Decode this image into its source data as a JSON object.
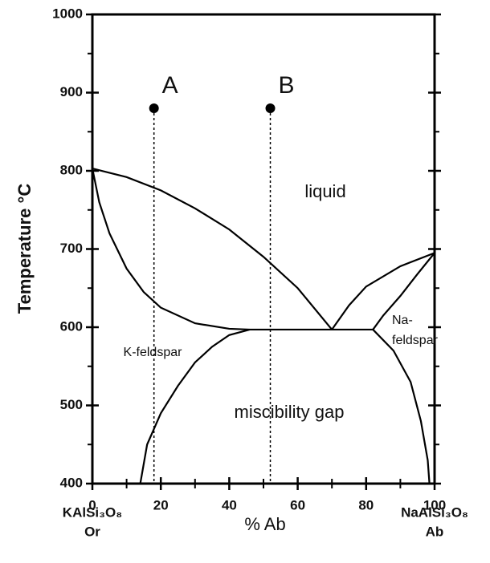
{
  "chart_data": {
    "type": "phase-diagram",
    "xlabel": "% Ab",
    "ylabel": "Temperature °C",
    "xlim": [
      0,
      100
    ],
    "ylim": [
      400,
      1000
    ],
    "xticks": [
      0,
      20,
      40,
      60,
      80,
      100
    ],
    "yticks": [
      400,
      500,
      600,
      700,
      800,
      900,
      1000
    ],
    "xminorticks": [
      10,
      30,
      50,
      70,
      90
    ],
    "yminorticks": [
      450,
      550,
      650,
      750,
      850,
      950
    ],
    "end_labels": [
      {
        "formula": "KAlSi₃O₈",
        "name": "Or"
      },
      {
        "formula": "NaAlSi₃O₈",
        "name": "Ab"
      }
    ],
    "series": [
      {
        "style": "solid",
        "x": [
          0,
          10,
          20,
          30,
          40,
          50,
          60,
          70
        ],
        "y": [
          803,
          792,
          775,
          752,
          725,
          690,
          650,
          597
        ]
      },
      {
        "style": "solid",
        "x": [
          0,
          2,
          5,
          10,
          15,
          20,
          30,
          40,
          46
        ],
        "y": [
          803,
          760,
          720,
          675,
          645,
          625,
          605,
          598,
          597
        ]
      },
      {
        "style": "solid",
        "x": [
          46,
          82
        ],
        "y": [
          597,
          597
        ]
      },
      {
        "style": "solid",
        "x": [
          70,
          75,
          80,
          90,
          100
        ],
        "y": [
          597,
          628,
          652,
          678,
          695
        ]
      },
      {
        "style": "solid",
        "x": [
          82,
          85,
          90,
          95,
          100
        ],
        "y": [
          597,
          615,
          640,
          668,
          695
        ]
      },
      {
        "style": "solid",
        "x": [
          14,
          16,
          20,
          25,
          30,
          35,
          40,
          46
        ],
        "y": [
          400,
          450,
          490,
          525,
          555,
          575,
          590,
          597
        ]
      },
      {
        "style": "solid",
        "x": [
          82,
          88,
          93,
          96,
          98,
          98.5
        ],
        "y": [
          597,
          570,
          530,
          480,
          430,
          400
        ]
      },
      {
        "style": "dotted",
        "x": [
          18,
          18
        ],
        "y": [
          880,
          400
        ]
      },
      {
        "style": "dotted",
        "x": [
          52,
          52
        ],
        "y": [
          880,
          400
        ]
      }
    ],
    "points": [
      {
        "label": "A",
        "x": 18,
        "y": 880
      },
      {
        "label": "B",
        "x": 52,
        "y": 880
      }
    ],
    "annotations": [
      "liquid",
      "K-feldspar",
      "Na-",
      "feldspar",
      "miscibility gap"
    ]
  }
}
